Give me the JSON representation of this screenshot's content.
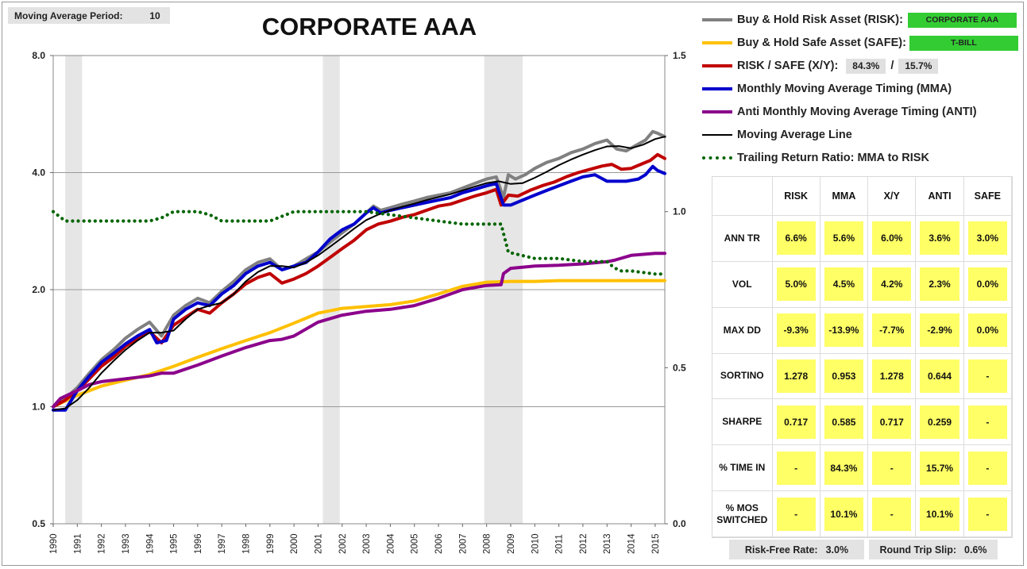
{
  "header": {
    "ma_period_label": "Moving Average Period:",
    "ma_period_value": "10"
  },
  "legend": {
    "risk_label": "Buy & Hold Risk Asset (RISK):",
    "risk_asset": "CORPORATE AAA",
    "safe_label": "Buy & Hold Safe Asset (SAFE):",
    "safe_asset": "T-BILL",
    "xy_label": "RISK / SAFE (X/Y):",
    "xy_risk": "84.3%",
    "xy_sep": "/",
    "xy_safe": "15.7%",
    "mma_label": "Monthly Moving Average Timing (MMA)",
    "anti_label": "Anti Monthly Moving Average Timing (ANTI)",
    "maline_label": "Moving Average Line",
    "ratio_label": "Trailing Return Ratio: MMA to RISK"
  },
  "stats": {
    "columns": [
      "RISK",
      "MMA",
      "X/Y",
      "ANTI",
      "SAFE"
    ],
    "rows": [
      {
        "label": "ANN TR",
        "values": [
          "6.6%",
          "5.6%",
          "6.0%",
          "3.6%",
          "3.0%"
        ]
      },
      {
        "label": "VOL",
        "values": [
          "5.0%",
          "4.5%",
          "4.2%",
          "2.3%",
          "0.0%"
        ]
      },
      {
        "label": "MAX DD",
        "values": [
          "-9.3%",
          "-13.9%",
          "-7.7%",
          "-2.9%",
          "0.0%"
        ]
      },
      {
        "label": "SORTINO",
        "values": [
          "1.278",
          "0.953",
          "1.278",
          "0.644",
          "-"
        ]
      },
      {
        "label": "SHARPE",
        "values": [
          "0.717",
          "0.585",
          "0.717",
          "0.259",
          "-"
        ]
      },
      {
        "label": "% TIME IN",
        "values": [
          "-",
          "84.3%",
          "-",
          "15.7%",
          "-"
        ]
      },
      {
        "label": "% MOS SWITCHED",
        "values": [
          "-",
          "10.1%",
          "-",
          "10.1%",
          "-"
        ]
      }
    ]
  },
  "footer": {
    "rf_label": "Risk-Free Rate:",
    "rf_value": "3.0%",
    "slip_label": "Round Trip Slip:",
    "slip_value": "0.6%"
  },
  "colors": {
    "risk": "#808080",
    "safe": "#ffc000",
    "xy": "#c00000",
    "mma": "#0000cc",
    "anti": "#8b008b",
    "ma_line": "#000000",
    "ratio": "#006400",
    "recession": "#e6e6e6",
    "badge": "#33cc33",
    "cell": "#ffff66"
  },
  "chart_data": {
    "type": "line",
    "title": "CORPORATE AAA",
    "xlabel": "",
    "ylabel": "",
    "x_ticks": [
      "1990",
      "1991",
      "1992",
      "1993",
      "1994",
      "1995",
      "1996",
      "1997",
      "1998",
      "1999",
      "2000",
      "2001",
      "2002",
      "2003",
      "2004",
      "2005",
      "2006",
      "2007",
      "2008",
      "2009",
      "2010",
      "2011",
      "2012",
      "2013",
      "2014",
      "2015"
    ],
    "x_range": [
      1990,
      2015.4
    ],
    "y_left": {
      "scale": "log",
      "range": [
        0.5,
        8.0
      ],
      "ticks": [
        "0.5",
        "1.0",
        "2.0",
        "4.0",
        "8.0"
      ]
    },
    "y_right": {
      "scale": "linear",
      "range": [
        0.0,
        1.5
      ],
      "ticks": [
        "0.0",
        "0.5",
        "1.0",
        "1.5"
      ]
    },
    "gridlines": "horizontal",
    "recessions": [
      [
        1990.5,
        1991.2
      ],
      [
        2001.2,
        2001.9
      ],
      [
        2007.9,
        2009.5
      ]
    ],
    "series": [
      {
        "name": "Buy & Hold Risk Asset (RISK)",
        "axis": "left",
        "color_key": "risk",
        "x": [
          1990,
          1990.5,
          1991,
          1991.5,
          1992,
          1992.5,
          1993,
          1993.5,
          1994,
          1994.5,
          1995,
          1995.5,
          1996,
          1996.5,
          1997,
          1997.5,
          1998,
          1998.5,
          1999,
          1999.5,
          2000,
          2000.5,
          2001,
          2001.5,
          2002,
          2002.5,
          2003,
          2003.3,
          2003.6,
          2004,
          2004.5,
          2005,
          2005.5,
          2006,
          2006.5,
          2007,
          2007.5,
          2008,
          2008.4,
          2008.7,
          2008.9,
          2009.2,
          2009.6,
          2010,
          2010.5,
          2011,
          2011.5,
          2012,
          2012.5,
          2013,
          2013.4,
          2013.8,
          2014.2,
          2014.6,
          2014.9,
          2015.1,
          2015.4
        ],
        "y": [
          1.0,
          1.05,
          1.12,
          1.22,
          1.32,
          1.4,
          1.5,
          1.58,
          1.65,
          1.52,
          1.72,
          1.82,
          1.9,
          1.85,
          1.98,
          2.1,
          2.25,
          2.35,
          2.4,
          2.25,
          2.3,
          2.4,
          2.5,
          2.65,
          2.8,
          2.95,
          3.15,
          3.28,
          3.2,
          3.25,
          3.32,
          3.38,
          3.45,
          3.5,
          3.55,
          3.65,
          3.75,
          3.85,
          3.9,
          3.45,
          3.95,
          3.85,
          3.95,
          4.1,
          4.25,
          4.35,
          4.5,
          4.6,
          4.75,
          4.85,
          4.6,
          4.55,
          4.7,
          4.85,
          5.1,
          5.05,
          4.95
        ]
      },
      {
        "name": "Buy & Hold Safe Asset (SAFE)",
        "axis": "left",
        "color_key": "safe",
        "x": [
          1990,
          1991,
          1992,
          1993,
          1994,
          1995,
          1996,
          1997,
          1998,
          1999,
          2000,
          2001,
          2002,
          2003,
          2004,
          2005,
          2006,
          2007,
          2008,
          2009,
          2010,
          2011,
          2012,
          2013,
          2014,
          2015,
          2015.4
        ],
        "y": [
          1.0,
          1.07,
          1.13,
          1.17,
          1.21,
          1.27,
          1.34,
          1.41,
          1.48,
          1.55,
          1.64,
          1.74,
          1.79,
          1.81,
          1.83,
          1.87,
          1.95,
          2.04,
          2.09,
          2.1,
          2.1,
          2.11,
          2.11,
          2.11,
          2.11,
          2.11,
          2.11
        ]
      },
      {
        "name": "RISK / SAFE (X/Y)",
        "axis": "left",
        "color_key": "xy",
        "x": [
          1990,
          1990.5,
          1991,
          1991.5,
          1992,
          1992.5,
          1993,
          1993.5,
          1994,
          1994.5,
          1995,
          1995.5,
          1996,
          1996.5,
          1997,
          1997.5,
          1998,
          1998.5,
          1999,
          1999.5,
          2000,
          2000.5,
          2001,
          2001.5,
          2002,
          2002.5,
          2003,
          2003.5,
          2004,
          2004.5,
          2005,
          2005.5,
          2006,
          2006.5,
          2007,
          2007.5,
          2008,
          2008.4,
          2008.6,
          2008.9,
          2009.3,
          2009.8,
          2010.3,
          2010.8,
          2011.3,
          2011.8,
          2012.3,
          2012.8,
          2013.2,
          2013.6,
          2014,
          2014.4,
          2014.8,
          2015.1,
          2015.4
        ],
        "y": [
          1.0,
          1.04,
          1.1,
          1.18,
          1.27,
          1.34,
          1.43,
          1.5,
          1.56,
          1.46,
          1.62,
          1.7,
          1.78,
          1.74,
          1.85,
          1.95,
          2.07,
          2.15,
          2.2,
          2.08,
          2.13,
          2.2,
          2.3,
          2.42,
          2.55,
          2.68,
          2.85,
          2.95,
          3.0,
          3.07,
          3.12,
          3.2,
          3.28,
          3.32,
          3.4,
          3.48,
          3.55,
          3.62,
          3.3,
          3.5,
          3.48,
          3.6,
          3.7,
          3.78,
          3.9,
          4.0,
          4.08,
          4.16,
          4.2,
          4.08,
          4.1,
          4.2,
          4.3,
          4.45,
          4.35
        ]
      },
      {
        "name": "Monthly Moving Average Timing (MMA)",
        "axis": "left",
        "color_key": "mma",
        "x": [
          1990,
          1990.5,
          1991,
          1991.5,
          1992,
          1992.5,
          1993,
          1993.5,
          1994,
          1994.3,
          1994.7,
          1995,
          1995.5,
          1996,
          1996.5,
          1997,
          1997.5,
          1998,
          1998.5,
          1999,
          1999.5,
          2000,
          2000.5,
          2001,
          2001.5,
          2002,
          2002.5,
          2003,
          2003.3,
          2003.6,
          2004,
          2004.5,
          2005,
          2005.5,
          2006,
          2006.5,
          2007,
          2007.5,
          2008,
          2008.4,
          2008.7,
          2009,
          2009.5,
          2010,
          2010.5,
          2011,
          2011.5,
          2012,
          2012.5,
          2013,
          2013.3,
          2013.8,
          2014.3,
          2014.6,
          2014.9,
          2015.1,
          2015.4
        ],
        "y": [
          0.98,
          0.98,
          1.1,
          1.2,
          1.3,
          1.37,
          1.45,
          1.52,
          1.58,
          1.46,
          1.48,
          1.68,
          1.78,
          1.85,
          1.82,
          1.95,
          2.05,
          2.2,
          2.3,
          2.35,
          2.25,
          2.3,
          2.35,
          2.5,
          2.7,
          2.85,
          2.95,
          3.15,
          3.25,
          3.15,
          3.2,
          3.25,
          3.3,
          3.35,
          3.4,
          3.45,
          3.55,
          3.62,
          3.7,
          3.75,
          3.3,
          3.3,
          3.4,
          3.5,
          3.6,
          3.7,
          3.8,
          3.9,
          3.95,
          3.8,
          3.8,
          3.8,
          3.85,
          3.95,
          4.15,
          4.05,
          3.98
        ]
      },
      {
        "name": "Anti Monthly Moving Average Timing (ANTI)",
        "axis": "left",
        "color_key": "anti",
        "x": [
          1990,
          1990.3,
          1991,
          1991.5,
          1992,
          1993,
          1994,
          1994.5,
          1995,
          1996,
          1997,
          1998,
          1999,
          1999.5,
          2000,
          2001,
          2002,
          2003,
          2004,
          2005,
          2006,
          2007,
          2008,
          2008.6,
          2008.7,
          2009,
          2010,
          2011,
          2012,
          2013,
          2013.3,
          2014,
          2015,
          2015.4
        ],
        "y": [
          1.0,
          1.05,
          1.1,
          1.14,
          1.16,
          1.18,
          1.2,
          1.22,
          1.22,
          1.28,
          1.35,
          1.42,
          1.48,
          1.49,
          1.52,
          1.65,
          1.72,
          1.76,
          1.78,
          1.82,
          1.9,
          2.0,
          2.05,
          2.06,
          2.2,
          2.27,
          2.3,
          2.31,
          2.33,
          2.36,
          2.38,
          2.45,
          2.48,
          2.48
        ]
      },
      {
        "name": "Moving Average Line",
        "axis": "left",
        "color_key": "ma_line",
        "x": [
          1990,
          1990.5,
          1991,
          1991.5,
          1992,
          1992.5,
          1993,
          1993.5,
          1994,
          1994.5,
          1995,
          1995.5,
          1996,
          1996.5,
          1997,
          1997.5,
          1998,
          1998.5,
          1999,
          1999.5,
          2000,
          2000.5,
          2001,
          2001.5,
          2002,
          2002.5,
          2003,
          2003.5,
          2004,
          2004.5,
          2005,
          2005.5,
          2006,
          2006.5,
          2007,
          2007.5,
          2008,
          2008.5,
          2009,
          2009.5,
          2010,
          2010.5,
          2011,
          2011.5,
          2012,
          2012.5,
          2013,
          2013.5,
          2014,
          2014.5,
          2015,
          2015.4
        ],
        "y": [
          0.98,
          0.99,
          1.04,
          1.12,
          1.22,
          1.31,
          1.4,
          1.48,
          1.55,
          1.55,
          1.57,
          1.68,
          1.78,
          1.82,
          1.85,
          1.95,
          2.1,
          2.22,
          2.3,
          2.3,
          2.28,
          2.35,
          2.45,
          2.58,
          2.72,
          2.87,
          3.02,
          3.12,
          3.2,
          3.27,
          3.33,
          3.4,
          3.46,
          3.52,
          3.6,
          3.68,
          3.76,
          3.8,
          3.74,
          3.76,
          3.88,
          4.02,
          4.18,
          4.32,
          4.45,
          4.57,
          4.67,
          4.68,
          4.62,
          4.72,
          4.88,
          4.95
        ]
      },
      {
        "name": "Trailing Return Ratio: MMA to RISK",
        "axis": "right",
        "color_key": "ratio",
        "style": "dotted",
        "x": [
          1990,
          1990.5,
          1991,
          1992,
          1993,
          1994,
          1994.5,
          1995,
          1996,
          1996.5,
          1997,
          1998,
          1999,
          2000,
          2001,
          2002,
          2003,
          2004,
          2005,
          2006,
          2007,
          2008,
          2008.6,
          2008.9,
          2010,
          2011,
          2012,
          2013,
          2013.3,
          2013.6,
          2014,
          2015,
          2015.4
        ],
        "y": [
          1.0,
          0.97,
          0.97,
          0.97,
          0.97,
          0.97,
          0.98,
          1.0,
          1.0,
          0.99,
          0.97,
          0.97,
          0.97,
          1.0,
          1.0,
          1.0,
          1.0,
          0.99,
          0.98,
          0.97,
          0.96,
          0.96,
          0.96,
          0.87,
          0.85,
          0.85,
          0.84,
          0.84,
          0.82,
          0.81,
          0.81,
          0.8,
          0.8
        ]
      }
    ]
  }
}
